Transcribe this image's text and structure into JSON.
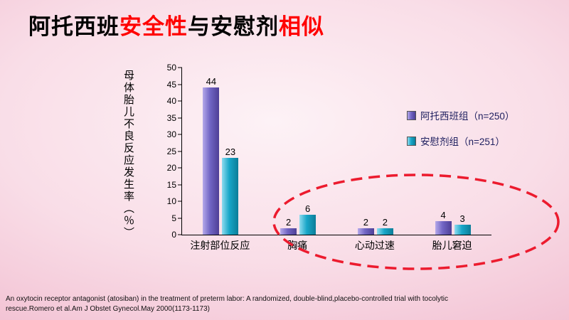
{
  "title": {
    "segments": [
      {
        "text": "阿托西班",
        "color": "#000000"
      },
      {
        "text": "安全性",
        "color": "#ff0000"
      },
      {
        "text": "与安慰剂",
        "color": "#000000"
      },
      {
        "text": "相似",
        "color": "#ff0000"
      }
    ]
  },
  "chart_data": {
    "type": "bar",
    "title": "",
    "xlabel": "",
    "ylabel": "母体胎儿不良反应发生率（％）",
    "ylim": [
      0,
      50
    ],
    "yticks": [
      0,
      5,
      10,
      15,
      20,
      25,
      30,
      35,
      40,
      45,
      50
    ],
    "grid": false,
    "legend_position": "right",
    "categories": [
      "注射部位反应",
      "胸痛",
      "心动过速",
      "胎儿窘迫"
    ],
    "series": [
      {
        "name": "阿托西班组（n=250）",
        "color": "#7165c4",
        "light": "#b5a9ea",
        "dark": "#4e3f96",
        "values": [
          44,
          2,
          2,
          4
        ]
      },
      {
        "name": "安慰剂组（n=251）",
        "color": "#18a6c8",
        "light": "#8fdcef",
        "dark": "#0c7d98",
        "values": [
          23,
          6,
          2,
          3
        ]
      }
    ],
    "highlight": {
      "shape": "dashed-ellipse",
      "around_categories": [
        "胸痛",
        "心动过速",
        "胎儿窘迫"
      ]
    }
  },
  "citation": {
    "lines": [
      "An oxytocin receptor antagonist (atosiban) in the treatment of preterm labor: A randomized, double-blind,placebo-controlled trial with tocolytic",
      "rescue.Romero et al.Am J Obstet Gynecol.May 2000(1173-1173)"
    ]
  },
  "colors": {
    "title_accent": "#ff0000",
    "ellipse": "#ec1b2e",
    "slide_background": "#f7d7e2"
  }
}
